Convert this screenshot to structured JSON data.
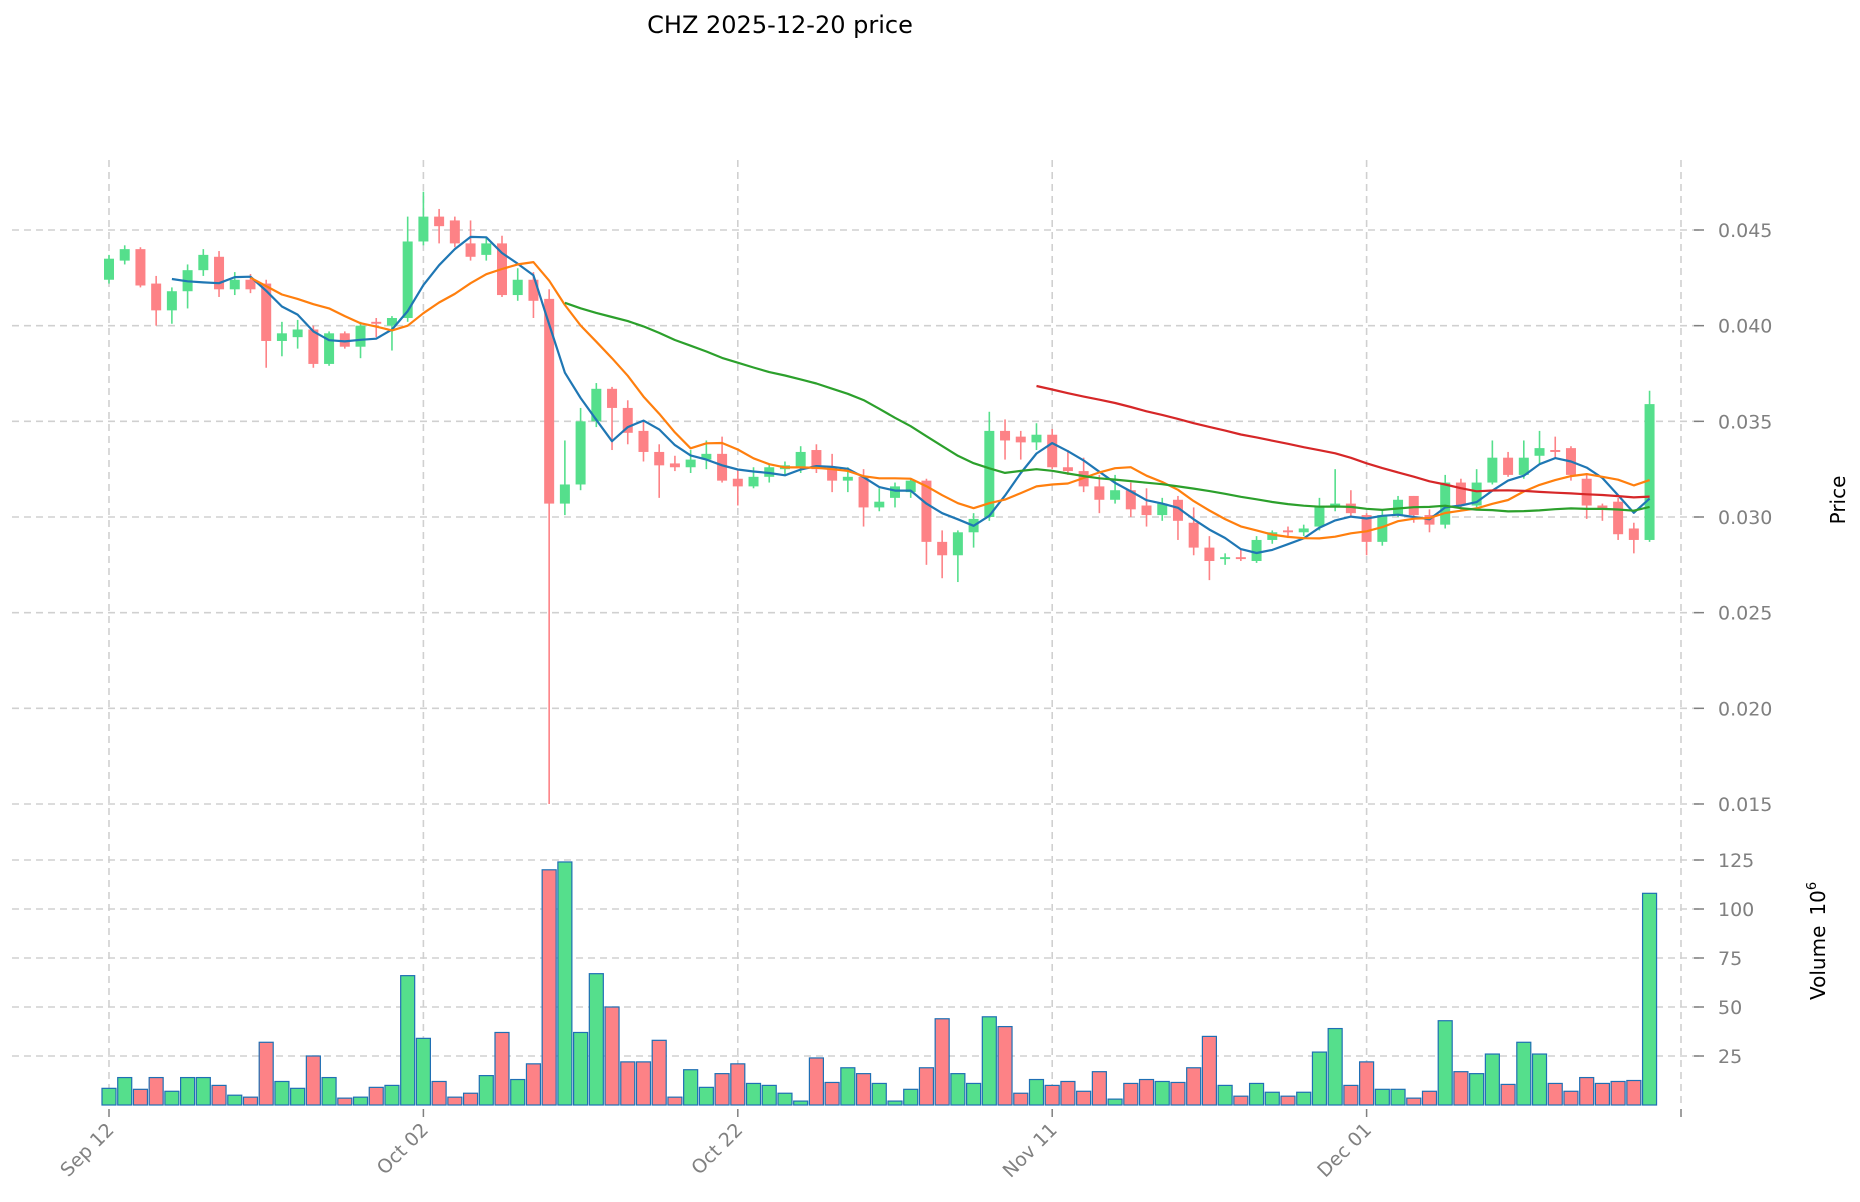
{
  "chart_data": {
    "type": "candlestick",
    "title": "CHZ  2025-12-20  price",
    "ylabel": "Price",
    "ylabel_volume": "Volume",
    "ylabel_volume_exp": "10",
    "ylabel_volume_pow": "6",
    "ylim": [
      0.0125,
      0.0485
    ],
    "volume_ylim": [
      0,
      132
    ],
    "grid": true,
    "price_ticks": [
      "0.015",
      "0.020",
      "0.025",
      "0.030",
      "0.035",
      "0.040",
      "0.045"
    ],
    "volume_ticks": [
      "25",
      "50",
      "75",
      "100",
      "125"
    ],
    "x_ticks": [
      {
        "index": 0,
        "label": "Sep 12"
      },
      {
        "index": 20,
        "label": "Oct 02"
      },
      {
        "index": 40,
        "label": "Oct 22"
      },
      {
        "index": 60,
        "label": "Nov 11"
      },
      {
        "index": 80,
        "label": "Dec 01"
      }
    ],
    "colors": {
      "up": "#55df8c",
      "down": "#fd8286",
      "volume_edge": "#1f6fb4"
    },
    "moving_averages": [
      {
        "window": 5,
        "color": "#1f77b4"
      },
      {
        "window": 10,
        "color": "#ff7f0e"
      },
      {
        "window": 30,
        "color": "#2ca02c"
      },
      {
        "window": 60,
        "color": "#d62728"
      }
    ],
    "dates": [
      "2025-09-12",
      "2025-09-13",
      "2025-09-14",
      "2025-09-15",
      "2025-09-16",
      "2025-09-17",
      "2025-09-18",
      "2025-09-19",
      "2025-09-20",
      "2025-09-21",
      "2025-09-22",
      "2025-09-23",
      "2025-09-24",
      "2025-09-25",
      "2025-09-26",
      "2025-09-27",
      "2025-09-28",
      "2025-09-29",
      "2025-09-30",
      "2025-10-01",
      "2025-10-02",
      "2025-10-03",
      "2025-10-04",
      "2025-10-05",
      "2025-10-06",
      "2025-10-07",
      "2025-10-08",
      "2025-10-09",
      "2025-10-10",
      "2025-10-11",
      "2025-10-12",
      "2025-10-13",
      "2025-10-14",
      "2025-10-15",
      "2025-10-16",
      "2025-10-17",
      "2025-10-18",
      "2025-10-19",
      "2025-10-20",
      "2025-10-21",
      "2025-10-22",
      "2025-10-23",
      "2025-10-24",
      "2025-10-25",
      "2025-10-26",
      "2025-10-27",
      "2025-10-28",
      "2025-10-29",
      "2025-10-30",
      "2025-10-31",
      "2025-11-01",
      "2025-11-02",
      "2025-11-03",
      "2025-11-04",
      "2025-11-05",
      "2025-11-06",
      "2025-11-07",
      "2025-11-08",
      "2025-11-09",
      "2025-11-10",
      "2025-11-11",
      "2025-11-12",
      "2025-11-13",
      "2025-11-14",
      "2025-11-15",
      "2025-11-16",
      "2025-11-17",
      "2025-11-18",
      "2025-11-19",
      "2025-11-20",
      "2025-11-21",
      "2025-11-22",
      "2025-11-23",
      "2025-11-24",
      "2025-11-25",
      "2025-11-26",
      "2025-11-27",
      "2025-11-28",
      "2025-11-29",
      "2025-11-30",
      "2025-12-01",
      "2025-12-02",
      "2025-12-03",
      "2025-12-04",
      "2025-12-05",
      "2025-12-06",
      "2025-12-07",
      "2025-12-08",
      "2025-12-09",
      "2025-12-10",
      "2025-12-11",
      "2025-12-12",
      "2025-12-13",
      "2025-12-14",
      "2025-12-15",
      "2025-12-16",
      "2025-12-17",
      "2025-12-18",
      "2025-12-19"
    ],
    "open": [
      0.0424,
      0.0434,
      0.044,
      0.0422,
      0.0408,
      0.0418,
      0.0429,
      0.0436,
      0.0419,
      0.0424,
      0.0422,
      0.0392,
      0.0394,
      0.0398,
      0.038,
      0.0396,
      0.0389,
      0.0402,
      0.04,
      0.0404,
      0.0444,
      0.0457,
      0.0455,
      0.0443,
      0.0437,
      0.0443,
      0.0416,
      0.0424,
      0.0414,
      0.0307,
      0.0317,
      0.035,
      0.0367,
      0.0357,
      0.0345,
      0.0334,
      0.0328,
      0.0326,
      0.033,
      0.0333,
      0.032,
      0.0316,
      0.0321,
      0.0325,
      0.0326,
      0.0335,
      0.0326,
      0.0319,
      0.0321,
      0.0305,
      0.031,
      0.0313,
      0.0319,
      0.0287,
      0.028,
      0.0292,
      0.03,
      0.0345,
      0.0342,
      0.0339,
      0.0343,
      0.0326,
      0.0324,
      0.0316,
      0.0309,
      0.0314,
      0.0306,
      0.0301,
      0.0309,
      0.0297,
      0.0284,
      0.0278,
      0.0279,
      0.0277,
      0.0288,
      0.0293,
      0.0292,
      0.0295,
      0.0305,
      0.0307,
      0.0301,
      0.0287,
      0.0301,
      0.0311,
      0.0301,
      0.0296,
      0.0318,
      0.0306,
      0.0318,
      0.0331,
      0.0322,
      0.0332,
      0.0335,
      0.0336,
      0.032,
      0.0306,
      0.0308,
      0.0294,
      0.0288
    ],
    "high": [
      0.0437,
      0.0442,
      0.0441,
      0.0426,
      0.042,
      0.0432,
      0.044,
      0.0439,
      0.0428,
      0.0427,
      0.0424,
      0.0402,
      0.0403,
      0.04,
      0.0397,
      0.0397,
      0.0402,
      0.0404,
      0.0405,
      0.0457,
      0.047,
      0.0461,
      0.0457,
      0.0455,
      0.0446,
      0.0447,
      0.043,
      0.0428,
      0.0419,
      0.034,
      0.0357,
      0.037,
      0.0368,
      0.0361,
      0.035,
      0.0338,
      0.0332,
      0.0335,
      0.034,
      0.0342,
      0.0325,
      0.0326,
      0.0328,
      0.0329,
      0.0337,
      0.0338,
      0.0333,
      0.0326,
      0.0325,
      0.0315,
      0.0318,
      0.032,
      0.032,
      0.0293,
      0.0293,
      0.0302,
      0.0355,
      0.0351,
      0.0345,
      0.0349,
      0.0346,
      0.0335,
      0.0331,
      0.0322,
      0.0322,
      0.0318,
      0.0315,
      0.031,
      0.0311,
      0.0305,
      0.029,
      0.0281,
      0.0283,
      0.029,
      0.0293,
      0.0295,
      0.0296,
      0.031,
      0.0325,
      0.0314,
      0.0302,
      0.0304,
      0.0311,
      0.0311,
      0.0304,
      0.0322,
      0.032,
      0.0325,
      0.034,
      0.0334,
      0.034,
      0.0345,
      0.0342,
      0.0337,
      0.0323,
      0.0307,
      0.031,
      0.0297,
      0.0366
    ],
    "low": [
      0.0422,
      0.0432,
      0.042,
      0.04,
      0.0401,
      0.0409,
      0.0426,
      0.0415,
      0.0416,
      0.0417,
      0.0378,
      0.0384,
      0.0388,
      0.0378,
      0.0379,
      0.0388,
      0.0383,
      0.0394,
      0.0387,
      0.0402,
      0.0442,
      0.0443,
      0.0441,
      0.0434,
      0.0434,
      0.0415,
      0.0413,
      0.0404,
      0.015,
      0.0301,
      0.0314,
      0.0347,
      0.0335,
      0.0338,
      0.0329,
      0.031,
      0.0324,
      0.0323,
      0.0325,
      0.0318,
      0.0306,
      0.0315,
      0.0318,
      0.0322,
      0.0323,
      0.0323,
      0.0313,
      0.0313,
      0.0295,
      0.0303,
      0.0305,
      0.031,
      0.0275,
      0.0268,
      0.0266,
      0.0284,
      0.0298,
      0.033,
      0.033,
      0.0335,
      0.0325,
      0.0322,
      0.0313,
      0.0302,
      0.0307,
      0.03,
      0.0295,
      0.0298,
      0.0288,
      0.028,
      0.0267,
      0.0275,
      0.0277,
      0.0276,
      0.0286,
      0.0289,
      0.029,
      0.0293,
      0.0303,
      0.03,
      0.028,
      0.0285,
      0.03,
      0.0297,
      0.0292,
      0.0294,
      0.0304,
      0.0305,
      0.0317,
      0.0321,
      0.032,
      0.0328,
      0.0331,
      0.0319,
      0.0299,
      0.0298,
      0.0288,
      0.0281,
      0.0287
    ],
    "close": [
      0.0435,
      0.044,
      0.0421,
      0.0408,
      0.0418,
      0.0429,
      0.0437,
      0.0419,
      0.0424,
      0.0419,
      0.0392,
      0.0396,
      0.0398,
      0.038,
      0.0396,
      0.0389,
      0.04,
      0.0401,
      0.0404,
      0.0444,
      0.0457,
      0.0452,
      0.0443,
      0.0436,
      0.0443,
      0.0416,
      0.0424,
      0.0413,
      0.0307,
      0.0317,
      0.035,
      0.0367,
      0.0357,
      0.0344,
      0.0334,
      0.0327,
      0.0326,
      0.033,
      0.0333,
      0.0319,
      0.0316,
      0.0321,
      0.0326,
      0.0327,
      0.0334,
      0.0325,
      0.0319,
      0.0321,
      0.0305,
      0.0308,
      0.0316,
      0.0319,
      0.0287,
      0.028,
      0.0292,
      0.0299,
      0.0345,
      0.034,
      0.0339,
      0.0343,
      0.0326,
      0.0324,
      0.0316,
      0.0309,
      0.0314,
      0.0304,
      0.0301,
      0.0307,
      0.0298,
      0.0284,
      0.0277,
      0.0279,
      0.0278,
      0.0288,
      0.0292,
      0.0292,
      0.0294,
      0.0306,
      0.0307,
      0.0302,
      0.0287,
      0.0301,
      0.0309,
      0.0301,
      0.0296,
      0.0318,
      0.0306,
      0.0318,
      0.0331,
      0.0322,
      0.0331,
      0.0336,
      0.0334,
      0.0322,
      0.0306,
      0.0304,
      0.0291,
      0.0288,
      0.0359
    ],
    "volume": [
      8.5,
      14,
      8,
      14,
      7,
      14,
      14,
      10,
      5,
      4,
      32,
      12,
      8.5,
      25,
      14,
      3.5,
      4,
      9,
      10,
      66,
      34,
      12,
      4,
      6,
      15,
      37,
      13,
      21,
      120,
      124,
      37,
      67,
      50,
      22,
      22,
      33,
      4,
      18,
      9,
      16,
      21,
      11,
      10,
      6,
      2,
      24,
      11.5,
      19,
      16,
      11,
      2,
      8,
      19,
      44,
      16,
      11,
      45,
      40,
      6,
      13,
      10,
      12,
      7,
      17,
      3,
      11,
      13,
      12,
      11.5,
      19,
      35,
      10,
      4.5,
      11,
      6.5,
      4.5,
      6.5,
      27,
      39,
      10,
      22,
      8,
      8,
      3.5,
      7,
      43,
      17,
      16,
      26,
      10.5,
      32,
      26,
      11,
      7,
      14,
      11,
      12,
      12.5,
      108
    ]
  }
}
